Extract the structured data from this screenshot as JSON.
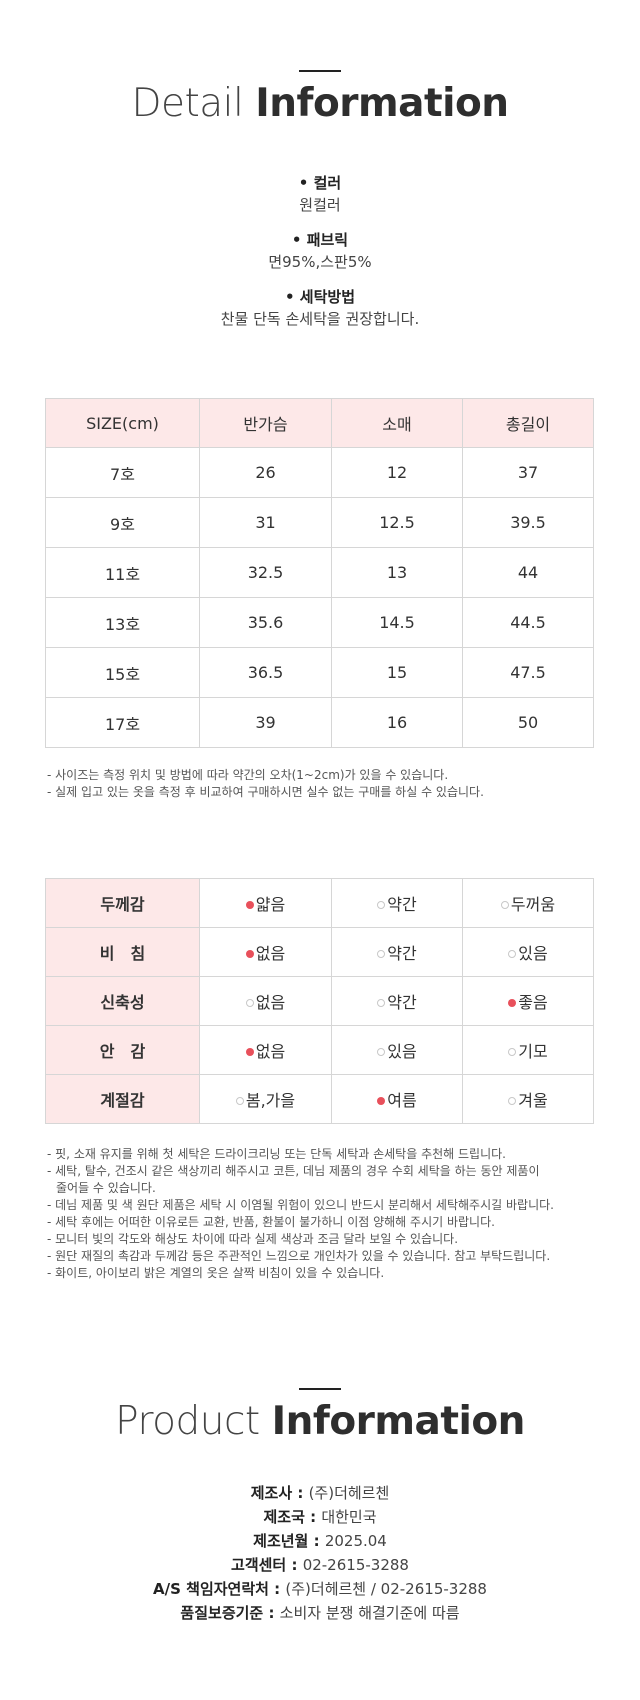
{
  "detail": {
    "heading_light": "Detail",
    "heading_bold": "Information",
    "specs": [
      {
        "title": "• 컬러",
        "value": "원컬러"
      },
      {
        "title": "• 패브릭",
        "value": "면95%,스판5%"
      },
      {
        "title": "• 세탁방법",
        "value": "찬물 단독 손세탁을 권장합니다."
      }
    ]
  },
  "size_table": {
    "headers": [
      "SIZE(cm)",
      "반가슴",
      "소매",
      "총길이"
    ],
    "rows": [
      [
        "7호",
        "26",
        "12",
        "37"
      ],
      [
        "9호",
        "31",
        "12.5",
        "39.5"
      ],
      [
        "11호",
        "32.5",
        "13",
        "44"
      ],
      [
        "13호",
        "35.6",
        "14.5",
        "44.5"
      ],
      [
        "15호",
        "36.5",
        "15",
        "47.5"
      ],
      [
        "17호",
        "39",
        "16",
        "50"
      ]
    ],
    "notes": [
      "- 사이즈는 측정 위치 및 방법에 따라 약간의 오차(1~2cm)가 있을 수 있습니다.",
      "- 실제 입고 있는 옷을 측정 후 비교하여 구매하시면 실수 없는 구매를 하실 수 있습니다."
    ]
  },
  "prop_table": {
    "rows": [
      {
        "label": "두께감",
        "options": [
          "얇음",
          "약간",
          "두꺼움"
        ],
        "selected": 0
      },
      {
        "label": "비　침",
        "options": [
          "없음",
          "약간",
          "있음"
        ],
        "selected": 0
      },
      {
        "label": "신축성",
        "options": [
          "없음",
          "약간",
          "좋음"
        ],
        "selected": 2
      },
      {
        "label": "안　감",
        "options": [
          "없음",
          "있음",
          "기모"
        ],
        "selected": 0
      },
      {
        "label": "계절감",
        "options": [
          "봄,가을",
          "여름",
          "겨울"
        ],
        "selected": 1
      }
    ],
    "notes": [
      "- 핏, 소재 유지를 위해 첫 세탁은 드라이크리닝 또는 단독 세탁과 손세탁을 추천해 드립니다.",
      "- 세탁, 탈수, 건조시 같은 색상끼리 해주시고 코튼, 데님 제품의 경우 수회 세탁을 하는 동안 제품이",
      "줄어들 수 있습니다.",
      "- 데님 제품 및 색 원단 제품은 세탁 시 이염될 위험이 있으니 반드시 분리해서 세탁해주시길 바랍니다.",
      "- 세탁 후에는 어떠한 이유로든 교환, 반품, 환불이 불가하니 이점 양해해 주시기 바랍니다.",
      "- 모니터 빛의 각도와 해상도 차이에 따라 실제 색상과 조금 달라 보일 수 있습니다.",
      "- 원단 재질의 촉감과 두께감 등은 주관적인 느낌으로 개인차가 있을 수 있습니다. 참고 부탁드립니다.",
      "- 화이트, 아이보리 밝은 계열의 옷은 살짝 비침이 있을 수 있습니다."
    ]
  },
  "product": {
    "heading_light": "Product",
    "heading_bold": "Information",
    "rows": [
      {
        "label": "제조사 : ",
        "value": "(주)더헤르첸"
      },
      {
        "label": "제조국 : ",
        "value": "대한민국"
      },
      {
        "label": "제조년월 : ",
        "value": "2025.04"
      },
      {
        "label": "고객센터 : ",
        "value": "02-2615-3288"
      },
      {
        "label": "A/S 책임자연락처 : ",
        "value": "(주)더헤르첸 / 02-2615-3288"
      },
      {
        "label": "품질보증기준 : ",
        "value": "소비자 분쟁 해결기준에 따름"
      }
    ]
  },
  "colors": {
    "accent_dot": "#e8505b",
    "header_bg": "#fde8e8"
  }
}
